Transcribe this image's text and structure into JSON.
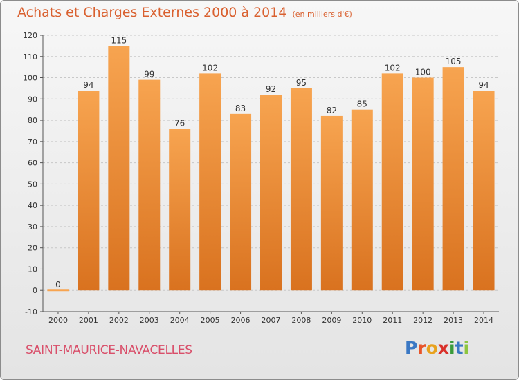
{
  "header": {
    "title": "Achats et Charges Externes 2000 à 2014",
    "subtitle": "(en milliers d'€)"
  },
  "footer": {
    "commune": "SAINT-MAURICE-NAVACELLES",
    "brand": "Proxiti"
  },
  "colors": {
    "bar_light": "#f7a450",
    "bar_dark": "#d9721f",
    "title": "#d9602f",
    "commune": "#d94f6a"
  },
  "chart_data": {
    "type": "bar",
    "categories": [
      "2000",
      "2001",
      "2002",
      "2003",
      "2004",
      "2005",
      "2006",
      "2007",
      "2008",
      "2009",
      "2010",
      "2011",
      "2012",
      "2013",
      "2014"
    ],
    "values": [
      0,
      94,
      115,
      99,
      76,
      102,
      83,
      92,
      95,
      82,
      85,
      102,
      100,
      105,
      94
    ],
    "title": "Achats et Charges Externes 2000 à 2014",
    "xlabel": "",
    "ylabel": "",
    "ylim": [
      -10,
      120
    ],
    "yticks": [
      -10,
      0,
      10,
      20,
      30,
      40,
      50,
      60,
      70,
      80,
      90,
      100,
      110,
      120
    ],
    "grid": true,
    "legend": "none"
  }
}
